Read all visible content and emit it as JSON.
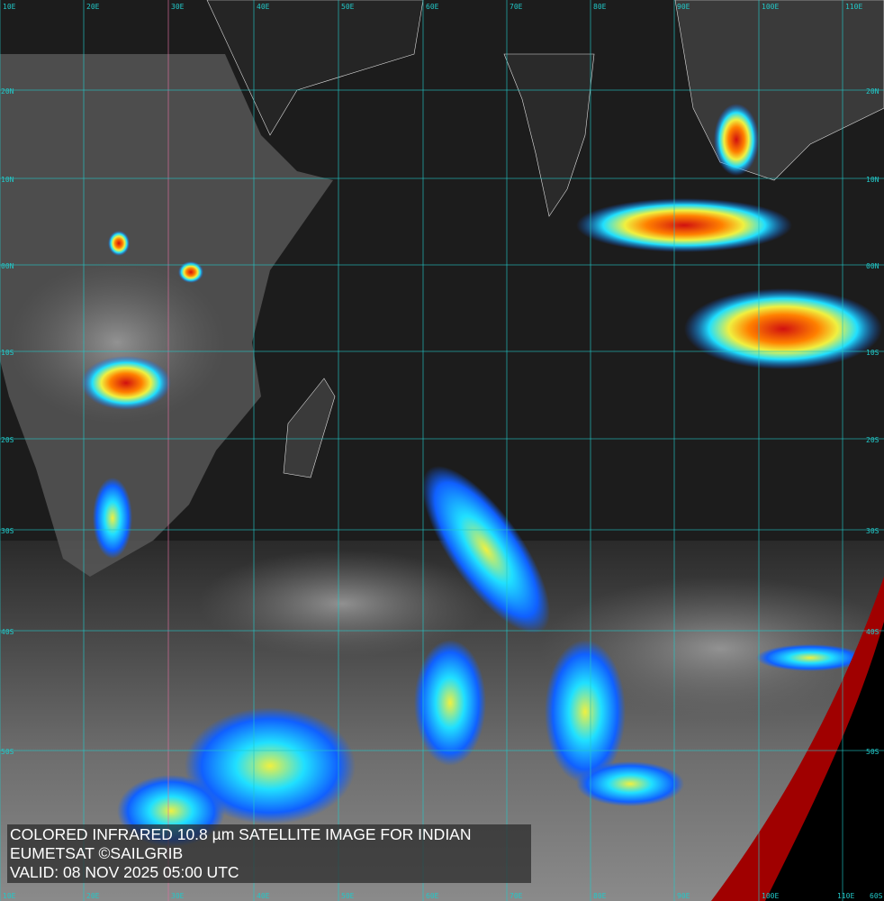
{
  "caption": {
    "line1": "COLORED INFRARED 10.8 µm SATELLITE IMAGE FOR INDIAN",
    "line2": "EUMETSAT ©SAILGRIB",
    "line3": "VALID:  08 NOV 2025 05:00 UTC"
  },
  "grid": {
    "longitudes": [
      "10E",
      "20E",
      "30E",
      "40E",
      "50E",
      "60E",
      "70E",
      "80E",
      "90E",
      "100E",
      "110E"
    ],
    "latitudes": [
      "20N",
      "10N",
      "00N",
      "10S",
      "20S",
      "30S",
      "40S",
      "50S",
      "60S"
    ],
    "grid_color": "#22c8c8",
    "highlight_meridian_color": "#e070a0"
  },
  "colors": {
    "ocean_dark": "#1c1c1c",
    "cloud_gray": "#8a8a8a",
    "cold_blue": "#1060ff",
    "cyan": "#20e0ff",
    "yellow": "#f0f040",
    "red": "#d01010",
    "space_red": "#a00000"
  }
}
